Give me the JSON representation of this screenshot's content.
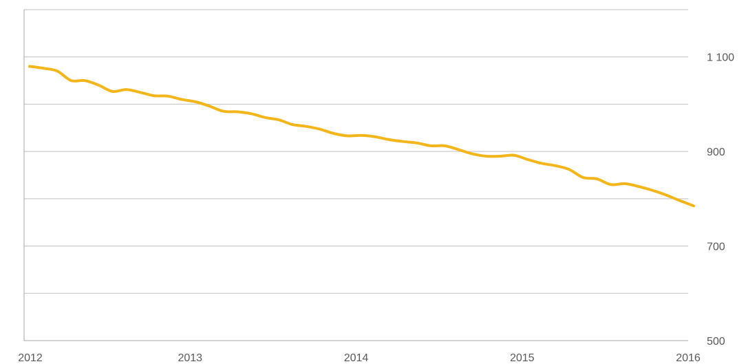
{
  "chart_data": {
    "type": "line",
    "title": "",
    "xlabel": "",
    "ylabel": "",
    "x_ticks": [
      "2012",
      "2013",
      "2014",
      "2015",
      "2016"
    ],
    "y_ticks": [
      {
        "value": 500,
        "label": "500"
      },
      {
        "value": 700,
        "label": "700"
      },
      {
        "value": 900,
        "label": "900"
      },
      {
        "value": 1100,
        "label": "1 100"
      }
    ],
    "xlim": [
      2012,
      2016
    ],
    "ylim": [
      500,
      1200
    ],
    "y_gridlines": [
      600,
      700,
      800,
      900,
      1000,
      1100,
      1200
    ],
    "grid": true,
    "legend": "none",
    "color": "#F2B61A",
    "series": [
      {
        "x": [
          2012.0,
          2012.083,
          2012.167,
          2012.25,
          2012.333,
          2012.417,
          2012.5,
          2012.583,
          2012.667,
          2012.75,
          2012.833,
          2012.917,
          2013.0,
          2013.083,
          2013.167,
          2013.25,
          2013.333,
          2013.417,
          2013.5,
          2013.583,
          2013.667,
          2013.75,
          2013.833,
          2013.917,
          2014.0,
          2014.083,
          2014.167,
          2014.25,
          2014.333,
          2014.417,
          2014.5,
          2014.583,
          2014.667,
          2014.75,
          2014.833,
          2014.917,
          2015.0,
          2015.083,
          2015.167,
          2015.25,
          2015.333,
          2015.417,
          2015.5,
          2015.583,
          2015.667,
          2015.75,
          2015.833,
          2015.917,
          2016.0
        ],
        "values": [
          1080,
          1076,
          1070,
          1050,
          1050,
          1040,
          1027,
          1031,
          1025,
          1018,
          1017,
          1010,
          1005,
          996,
          985,
          984,
          980,
          972,
          967,
          957,
          953,
          947,
          938,
          933,
          934,
          931,
          925,
          921,
          918,
          912,
          912,
          904,
          895,
          890,
          890,
          892,
          883,
          875,
          870,
          862,
          845,
          842,
          830,
          832,
          826,
          818,
          808,
          796,
          785
        ]
      }
    ]
  }
}
